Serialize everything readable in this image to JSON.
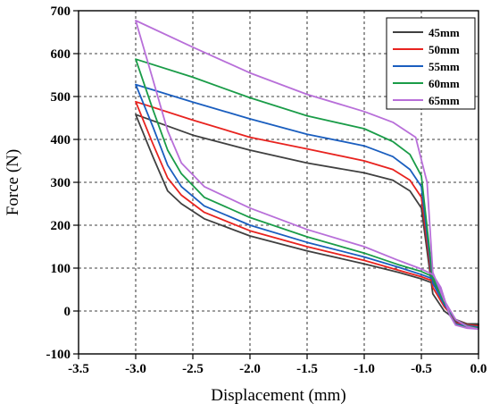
{
  "chart_data": {
    "type": "line",
    "xlabel": "Displacement (mm)",
    "ylabel": "Force (N)",
    "xlim": [
      -3.5,
      0.0
    ],
    "ylim": [
      -100,
      700
    ],
    "xticks": [
      -3.5,
      -3.0,
      -2.5,
      -2.0,
      -1.5,
      -1.0,
      -0.5,
      0.0
    ],
    "xtick_labels": [
      "-3.5",
      "-3.0",
      "-2.5",
      "-2.0",
      "-1.5",
      "-1.0",
      "-0.5",
      "0.0"
    ],
    "yticks": [
      -100,
      0,
      100,
      200,
      300,
      400,
      500,
      600,
      700
    ],
    "ytick_labels": [
      "-100",
      "0",
      "100",
      "200",
      "300",
      "400",
      "500",
      "600",
      "700"
    ],
    "grid": true,
    "legend_position": "top-right",
    "series": [
      {
        "name": "45mm",
        "color": "#404040",
        "points": [
          [
            0.0,
            -30
          ],
          [
            -0.1,
            -30
          ],
          [
            -0.2,
            -20
          ],
          [
            -0.3,
            0
          ],
          [
            -0.4,
            40
          ],
          [
            -0.5,
            240
          ],
          [
            -0.6,
            280
          ],
          [
            -0.75,
            305
          ],
          [
            -1.0,
            322
          ],
          [
            -1.5,
            345
          ],
          [
            -2.0,
            375
          ],
          [
            -2.5,
            410
          ],
          [
            -3.0,
            458
          ],
          [
            -2.85,
            360
          ],
          [
            -2.72,
            280
          ],
          [
            -2.6,
            250
          ],
          [
            -2.4,
            215
          ],
          [
            -2.0,
            175
          ],
          [
            -1.5,
            140
          ],
          [
            -1.0,
            110
          ],
          [
            -0.7,
            90
          ],
          [
            -0.5,
            75
          ],
          [
            -0.4,
            65
          ],
          [
            -0.33,
            40
          ],
          [
            -0.28,
            10
          ],
          [
            -0.25,
            -10
          ],
          [
            -0.2,
            -25
          ],
          [
            -0.1,
            -30
          ],
          [
            0.0,
            -32
          ]
        ]
      },
      {
        "name": "50mm",
        "color": "#e8231f",
        "points": [
          [
            0.0,
            -35
          ],
          [
            -0.1,
            -32
          ],
          [
            -0.2,
            -20
          ],
          [
            -0.3,
            10
          ],
          [
            -0.4,
            55
          ],
          [
            -0.5,
            265
          ],
          [
            -0.6,
            305
          ],
          [
            -0.75,
            330
          ],
          [
            -1.0,
            350
          ],
          [
            -1.5,
            378
          ],
          [
            -2.0,
            405
          ],
          [
            -2.5,
            445
          ],
          [
            -3.0,
            488
          ],
          [
            -2.85,
            390
          ],
          [
            -2.72,
            310
          ],
          [
            -2.6,
            270
          ],
          [
            -2.4,
            230
          ],
          [
            -2.0,
            187
          ],
          [
            -1.5,
            150
          ],
          [
            -1.0,
            118
          ],
          [
            -0.7,
            95
          ],
          [
            -0.5,
            80
          ],
          [
            -0.4,
            70
          ],
          [
            -0.33,
            45
          ],
          [
            -0.28,
            10
          ],
          [
            -0.25,
            -10
          ],
          [
            -0.2,
            -28
          ],
          [
            -0.1,
            -33
          ],
          [
            0.0,
            -35
          ]
        ]
      },
      {
        "name": "55mm",
        "color": "#1a5ebf",
        "points": [
          [
            0.0,
            -38
          ],
          [
            -0.1,
            -34
          ],
          [
            -0.2,
            -20
          ],
          [
            -0.3,
            15
          ],
          [
            -0.4,
            65
          ],
          [
            -0.5,
            290
          ],
          [
            -0.6,
            330
          ],
          [
            -0.75,
            360
          ],
          [
            -1.0,
            385
          ],
          [
            -1.5,
            412
          ],
          [
            -2.0,
            448
          ],
          [
            -2.5,
            487
          ],
          [
            -3.0,
            528
          ],
          [
            -2.85,
            430
          ],
          [
            -2.72,
            340
          ],
          [
            -2.6,
            290
          ],
          [
            -2.4,
            245
          ],
          [
            -2.0,
            200
          ],
          [
            -1.5,
            160
          ],
          [
            -1.0,
            126
          ],
          [
            -0.7,
            102
          ],
          [
            -0.5,
            85
          ],
          [
            -0.4,
            75
          ],
          [
            -0.33,
            48
          ],
          [
            -0.28,
            10
          ],
          [
            -0.25,
            -10
          ],
          [
            -0.2,
            -30
          ],
          [
            -0.1,
            -36
          ],
          [
            0.0,
            -38
          ]
        ]
      },
      {
        "name": "60mm",
        "color": "#1a9c48",
        "points": [
          [
            0.0,
            -40
          ],
          [
            -0.1,
            -35
          ],
          [
            -0.2,
            -20
          ],
          [
            -0.3,
            20
          ],
          [
            -0.4,
            75
          ],
          [
            -0.5,
            315
          ],
          [
            -0.6,
            365
          ],
          [
            -0.75,
            395
          ],
          [
            -1.0,
            425
          ],
          [
            -1.5,
            455
          ],
          [
            -2.0,
            497
          ],
          [
            -2.5,
            545
          ],
          [
            -3.0,
            587
          ],
          [
            -2.85,
            470
          ],
          [
            -2.72,
            375
          ],
          [
            -2.6,
            320
          ],
          [
            -2.4,
            265
          ],
          [
            -2.0,
            218
          ],
          [
            -1.5,
            173
          ],
          [
            -1.0,
            135
          ],
          [
            -0.7,
            108
          ],
          [
            -0.5,
            92
          ],
          [
            -0.4,
            80
          ],
          [
            -0.33,
            52
          ],
          [
            -0.28,
            12
          ],
          [
            -0.25,
            -10
          ],
          [
            -0.2,
            -32
          ],
          [
            -0.1,
            -38
          ],
          [
            0.0,
            -40
          ]
        ]
      },
      {
        "name": "65mm",
        "color": "#b86fd9",
        "points": [
          [
            0.0,
            -42
          ],
          [
            -0.1,
            -36
          ],
          [
            -0.2,
            -20
          ],
          [
            -0.3,
            25
          ],
          [
            -0.4,
            90
          ],
          [
            -0.45,
            300
          ],
          [
            -0.55,
            405
          ],
          [
            -0.75,
            440
          ],
          [
            -1.0,
            465
          ],
          [
            -1.5,
            505
          ],
          [
            -2.0,
            555
          ],
          [
            -2.5,
            615
          ],
          [
            -3.0,
            677
          ],
          [
            -2.85,
            540
          ],
          [
            -2.72,
            420
          ],
          [
            -2.6,
            345
          ],
          [
            -2.4,
            290
          ],
          [
            -2.0,
            240
          ],
          [
            -1.5,
            190
          ],
          [
            -1.0,
            150
          ],
          [
            -0.7,
            118
          ],
          [
            -0.5,
            98
          ],
          [
            -0.4,
            85
          ],
          [
            -0.33,
            55
          ],
          [
            -0.28,
            12
          ],
          [
            -0.25,
            -10
          ],
          [
            -0.2,
            -33
          ],
          [
            -0.1,
            -40
          ],
          [
            0.0,
            -42
          ]
        ]
      }
    ]
  }
}
